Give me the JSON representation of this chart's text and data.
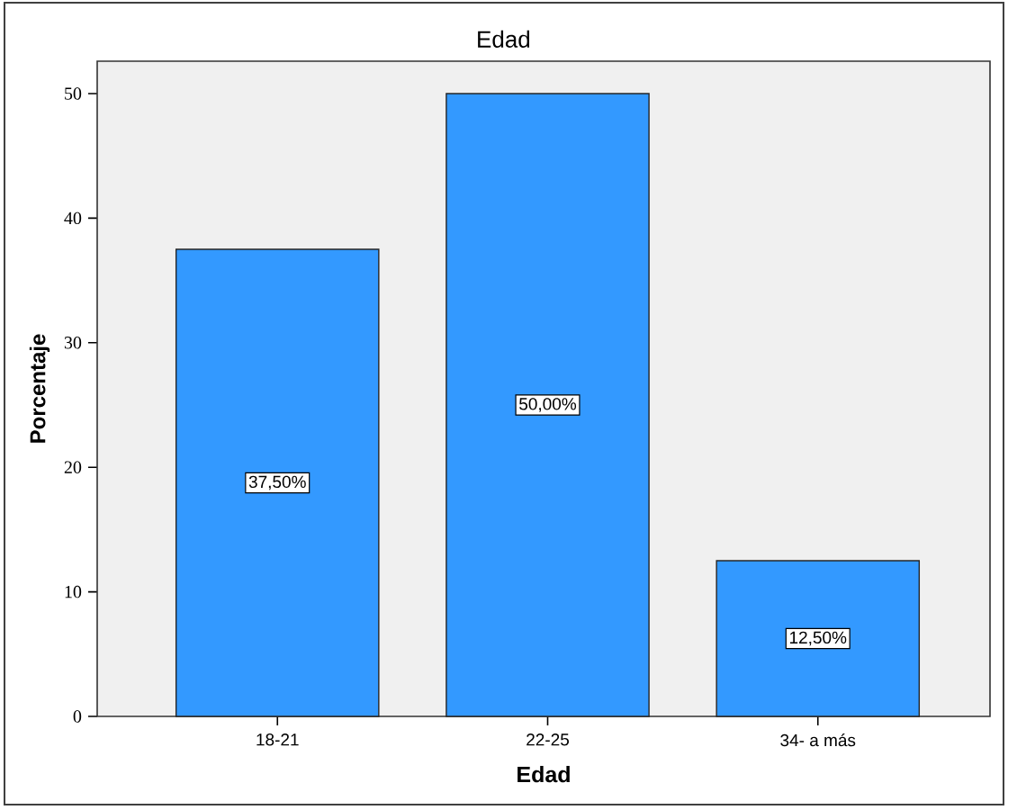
{
  "chart_data": {
    "type": "bar",
    "title": "Edad",
    "xlabel": "Edad",
    "ylabel": "Porcentaje",
    "categories": [
      "18-21",
      "22-25",
      "34- a más"
    ],
    "values": [
      37.5,
      50,
      12.5
    ],
    "value_labels": [
      "37,50%",
      "50,00%",
      "12,50%"
    ],
    "color": "#3399ff",
    "ylim": [
      0,
      52.6
    ],
    "yticks": [
      0,
      10,
      20,
      30,
      40,
      50
    ]
  }
}
